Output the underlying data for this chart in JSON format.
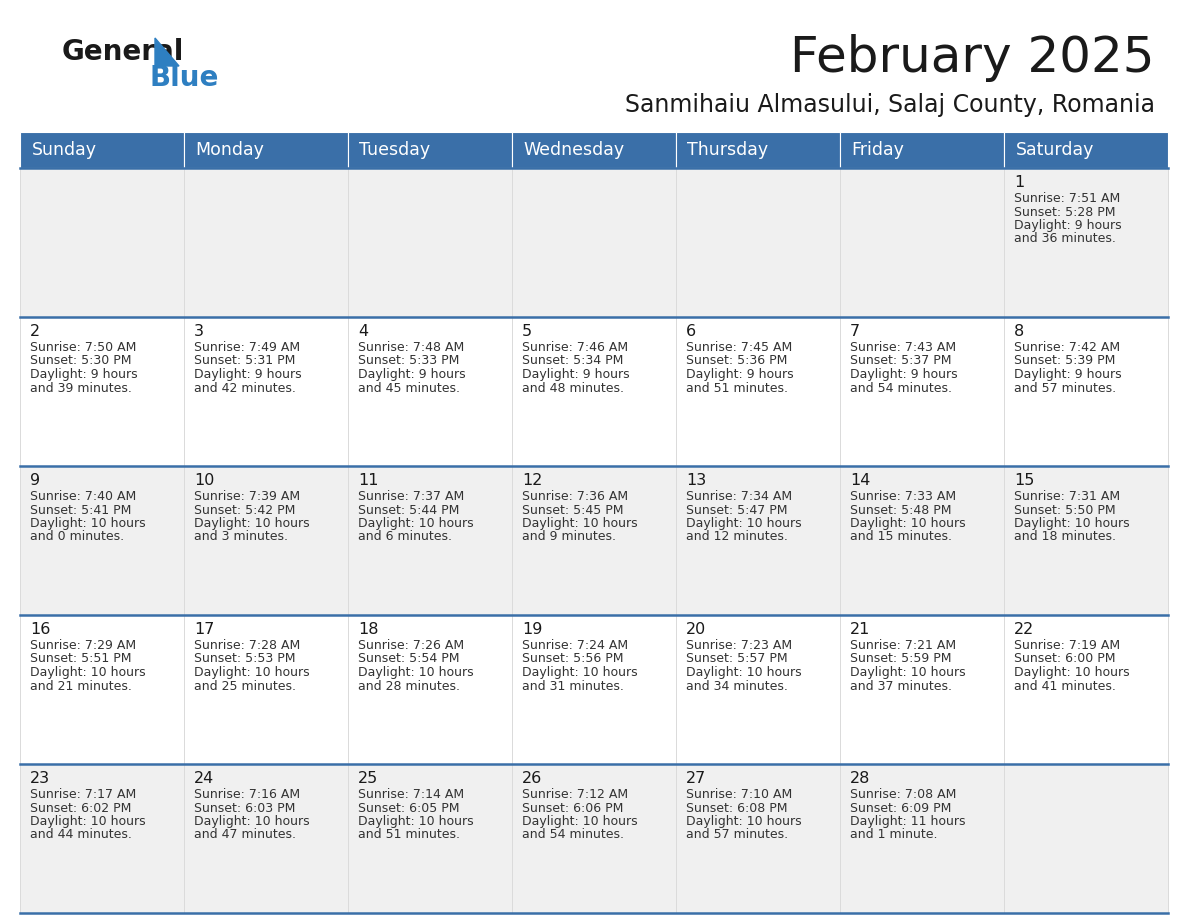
{
  "title": "February 2025",
  "subtitle": "Sanmihaiu Almasului, Salaj County, Romania",
  "header_bg_color": "#3a6fa8",
  "header_text_color": "#ffffff",
  "cell_bg_color_odd": "#f0f0f0",
  "cell_bg_color_even": "#ffffff",
  "day_headers": [
    "Sunday",
    "Monday",
    "Tuesday",
    "Wednesday",
    "Thursday",
    "Friday",
    "Saturday"
  ],
  "title_color": "#1a1a1a",
  "subtitle_color": "#1a1a1a",
  "cell_text_color": "#333333",
  "day_num_color": "#1a1a1a",
  "separator_color": "#3a6fa8",
  "logo_color1": "#1a1a1a",
  "logo_color2": "#2e7fc1",
  "days_data": [
    {
      "day": 1,
      "col": 6,
      "row": 0,
      "sunrise": "7:51 AM",
      "sunset": "5:28 PM",
      "daylight": "9 hours",
      "daylight2": "and 36 minutes."
    },
    {
      "day": 2,
      "col": 0,
      "row": 1,
      "sunrise": "7:50 AM",
      "sunset": "5:30 PM",
      "daylight": "9 hours",
      "daylight2": "and 39 minutes."
    },
    {
      "day": 3,
      "col": 1,
      "row": 1,
      "sunrise": "7:49 AM",
      "sunset": "5:31 PM",
      "daylight": "9 hours",
      "daylight2": "and 42 minutes."
    },
    {
      "day": 4,
      "col": 2,
      "row": 1,
      "sunrise": "7:48 AM",
      "sunset": "5:33 PM",
      "daylight": "9 hours",
      "daylight2": "and 45 minutes."
    },
    {
      "day": 5,
      "col": 3,
      "row": 1,
      "sunrise": "7:46 AM",
      "sunset": "5:34 PM",
      "daylight": "9 hours",
      "daylight2": "and 48 minutes."
    },
    {
      "day": 6,
      "col": 4,
      "row": 1,
      "sunrise": "7:45 AM",
      "sunset": "5:36 PM",
      "daylight": "9 hours",
      "daylight2": "and 51 minutes."
    },
    {
      "day": 7,
      "col": 5,
      "row": 1,
      "sunrise": "7:43 AM",
      "sunset": "5:37 PM",
      "daylight": "9 hours",
      "daylight2": "and 54 minutes."
    },
    {
      "day": 8,
      "col": 6,
      "row": 1,
      "sunrise": "7:42 AM",
      "sunset": "5:39 PM",
      "daylight": "9 hours",
      "daylight2": "and 57 minutes."
    },
    {
      "day": 9,
      "col": 0,
      "row": 2,
      "sunrise": "7:40 AM",
      "sunset": "5:41 PM",
      "daylight": "10 hours",
      "daylight2": "and 0 minutes."
    },
    {
      "day": 10,
      "col": 1,
      "row": 2,
      "sunrise": "7:39 AM",
      "sunset": "5:42 PM",
      "daylight": "10 hours",
      "daylight2": "and 3 minutes."
    },
    {
      "day": 11,
      "col": 2,
      "row": 2,
      "sunrise": "7:37 AM",
      "sunset": "5:44 PM",
      "daylight": "10 hours",
      "daylight2": "and 6 minutes."
    },
    {
      "day": 12,
      "col": 3,
      "row": 2,
      "sunrise": "7:36 AM",
      "sunset": "5:45 PM",
      "daylight": "10 hours",
      "daylight2": "and 9 minutes."
    },
    {
      "day": 13,
      "col": 4,
      "row": 2,
      "sunrise": "7:34 AM",
      "sunset": "5:47 PM",
      "daylight": "10 hours",
      "daylight2": "and 12 minutes."
    },
    {
      "day": 14,
      "col": 5,
      "row": 2,
      "sunrise": "7:33 AM",
      "sunset": "5:48 PM",
      "daylight": "10 hours",
      "daylight2": "and 15 minutes."
    },
    {
      "day": 15,
      "col": 6,
      "row": 2,
      "sunrise": "7:31 AM",
      "sunset": "5:50 PM",
      "daylight": "10 hours",
      "daylight2": "and 18 minutes."
    },
    {
      "day": 16,
      "col": 0,
      "row": 3,
      "sunrise": "7:29 AM",
      "sunset": "5:51 PM",
      "daylight": "10 hours",
      "daylight2": "and 21 minutes."
    },
    {
      "day": 17,
      "col": 1,
      "row": 3,
      "sunrise": "7:28 AM",
      "sunset": "5:53 PM",
      "daylight": "10 hours",
      "daylight2": "and 25 minutes."
    },
    {
      "day": 18,
      "col": 2,
      "row": 3,
      "sunrise": "7:26 AM",
      "sunset": "5:54 PM",
      "daylight": "10 hours",
      "daylight2": "and 28 minutes."
    },
    {
      "day": 19,
      "col": 3,
      "row": 3,
      "sunrise": "7:24 AM",
      "sunset": "5:56 PM",
      "daylight": "10 hours",
      "daylight2": "and 31 minutes."
    },
    {
      "day": 20,
      "col": 4,
      "row": 3,
      "sunrise": "7:23 AM",
      "sunset": "5:57 PM",
      "daylight": "10 hours",
      "daylight2": "and 34 minutes."
    },
    {
      "day": 21,
      "col": 5,
      "row": 3,
      "sunrise": "7:21 AM",
      "sunset": "5:59 PM",
      "daylight": "10 hours",
      "daylight2": "and 37 minutes."
    },
    {
      "day": 22,
      "col": 6,
      "row": 3,
      "sunrise": "7:19 AM",
      "sunset": "6:00 PM",
      "daylight": "10 hours",
      "daylight2": "and 41 minutes."
    },
    {
      "day": 23,
      "col": 0,
      "row": 4,
      "sunrise": "7:17 AM",
      "sunset": "6:02 PM",
      "daylight": "10 hours",
      "daylight2": "and 44 minutes."
    },
    {
      "day": 24,
      "col": 1,
      "row": 4,
      "sunrise": "7:16 AM",
      "sunset": "6:03 PM",
      "daylight": "10 hours",
      "daylight2": "and 47 minutes."
    },
    {
      "day": 25,
      "col": 2,
      "row": 4,
      "sunrise": "7:14 AM",
      "sunset": "6:05 PM",
      "daylight": "10 hours",
      "daylight2": "and 51 minutes."
    },
    {
      "day": 26,
      "col": 3,
      "row": 4,
      "sunrise": "7:12 AM",
      "sunset": "6:06 PM",
      "daylight": "10 hours",
      "daylight2": "and 54 minutes."
    },
    {
      "day": 27,
      "col": 4,
      "row": 4,
      "sunrise": "7:10 AM",
      "sunset": "6:08 PM",
      "daylight": "10 hours",
      "daylight2": "and 57 minutes."
    },
    {
      "day": 28,
      "col": 5,
      "row": 4,
      "sunrise": "7:08 AM",
      "sunset": "6:09 PM",
      "daylight": "11 hours",
      "daylight2": "and 1 minute."
    }
  ]
}
